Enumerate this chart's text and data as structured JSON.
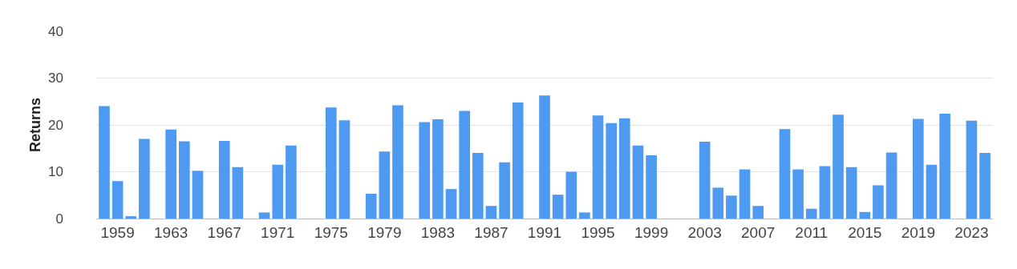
{
  "chart_data": {
    "type": "bar",
    "ylabel": "Returns",
    "categories": [
      null,
      "1959",
      null,
      null,
      null,
      "1963",
      null,
      null,
      null,
      "1967",
      null,
      null,
      null,
      "1971",
      null,
      null,
      null,
      "1975",
      null,
      null,
      null,
      "1979",
      null,
      null,
      null,
      "1983",
      null,
      null,
      null,
      "1987",
      null,
      null,
      null,
      "1991",
      null,
      null,
      null,
      "1995",
      null,
      null,
      null,
      "1999",
      null,
      null,
      null,
      "2003",
      null,
      null,
      null,
      "2007",
      null,
      null,
      null,
      "2011",
      null,
      null,
      null,
      "2015",
      null,
      null,
      null,
      "2019",
      null,
      null,
      null,
      "2023",
      null
    ],
    "values": [
      24,
      8,
      0.5,
      17,
      null,
      19,
      16.5,
      10.2,
      null,
      16.6,
      11,
      null,
      1.3,
      11.5,
      15.6,
      null,
      null,
      23.7,
      21,
      null,
      5.3,
      14.3,
      24.2,
      null,
      20.6,
      21.2,
      6.3,
      23,
      14,
      2.7,
      12,
      24.8,
      null,
      26.3,
      5.1,
      10,
      1.3,
      22,
      20.4,
      21.4,
      15.6,
      13.5,
      null,
      null,
      null,
      16.4,
      6.6,
      4.9,
      10.5,
      2.7,
      null,
      19.1,
      10.5,
      2.1,
      11.2,
      22.2,
      11,
      1.4,
      7.1,
      14.1,
      null,
      21.3,
      11.5,
      22.4,
      null,
      20.9,
      14
    ],
    "color": "#4e9af1",
    "ylim": [
      0,
      40
    ],
    "yticks": [
      0,
      10,
      20,
      30,
      40
    ],
    "grid": "y",
    "legend": false
  }
}
